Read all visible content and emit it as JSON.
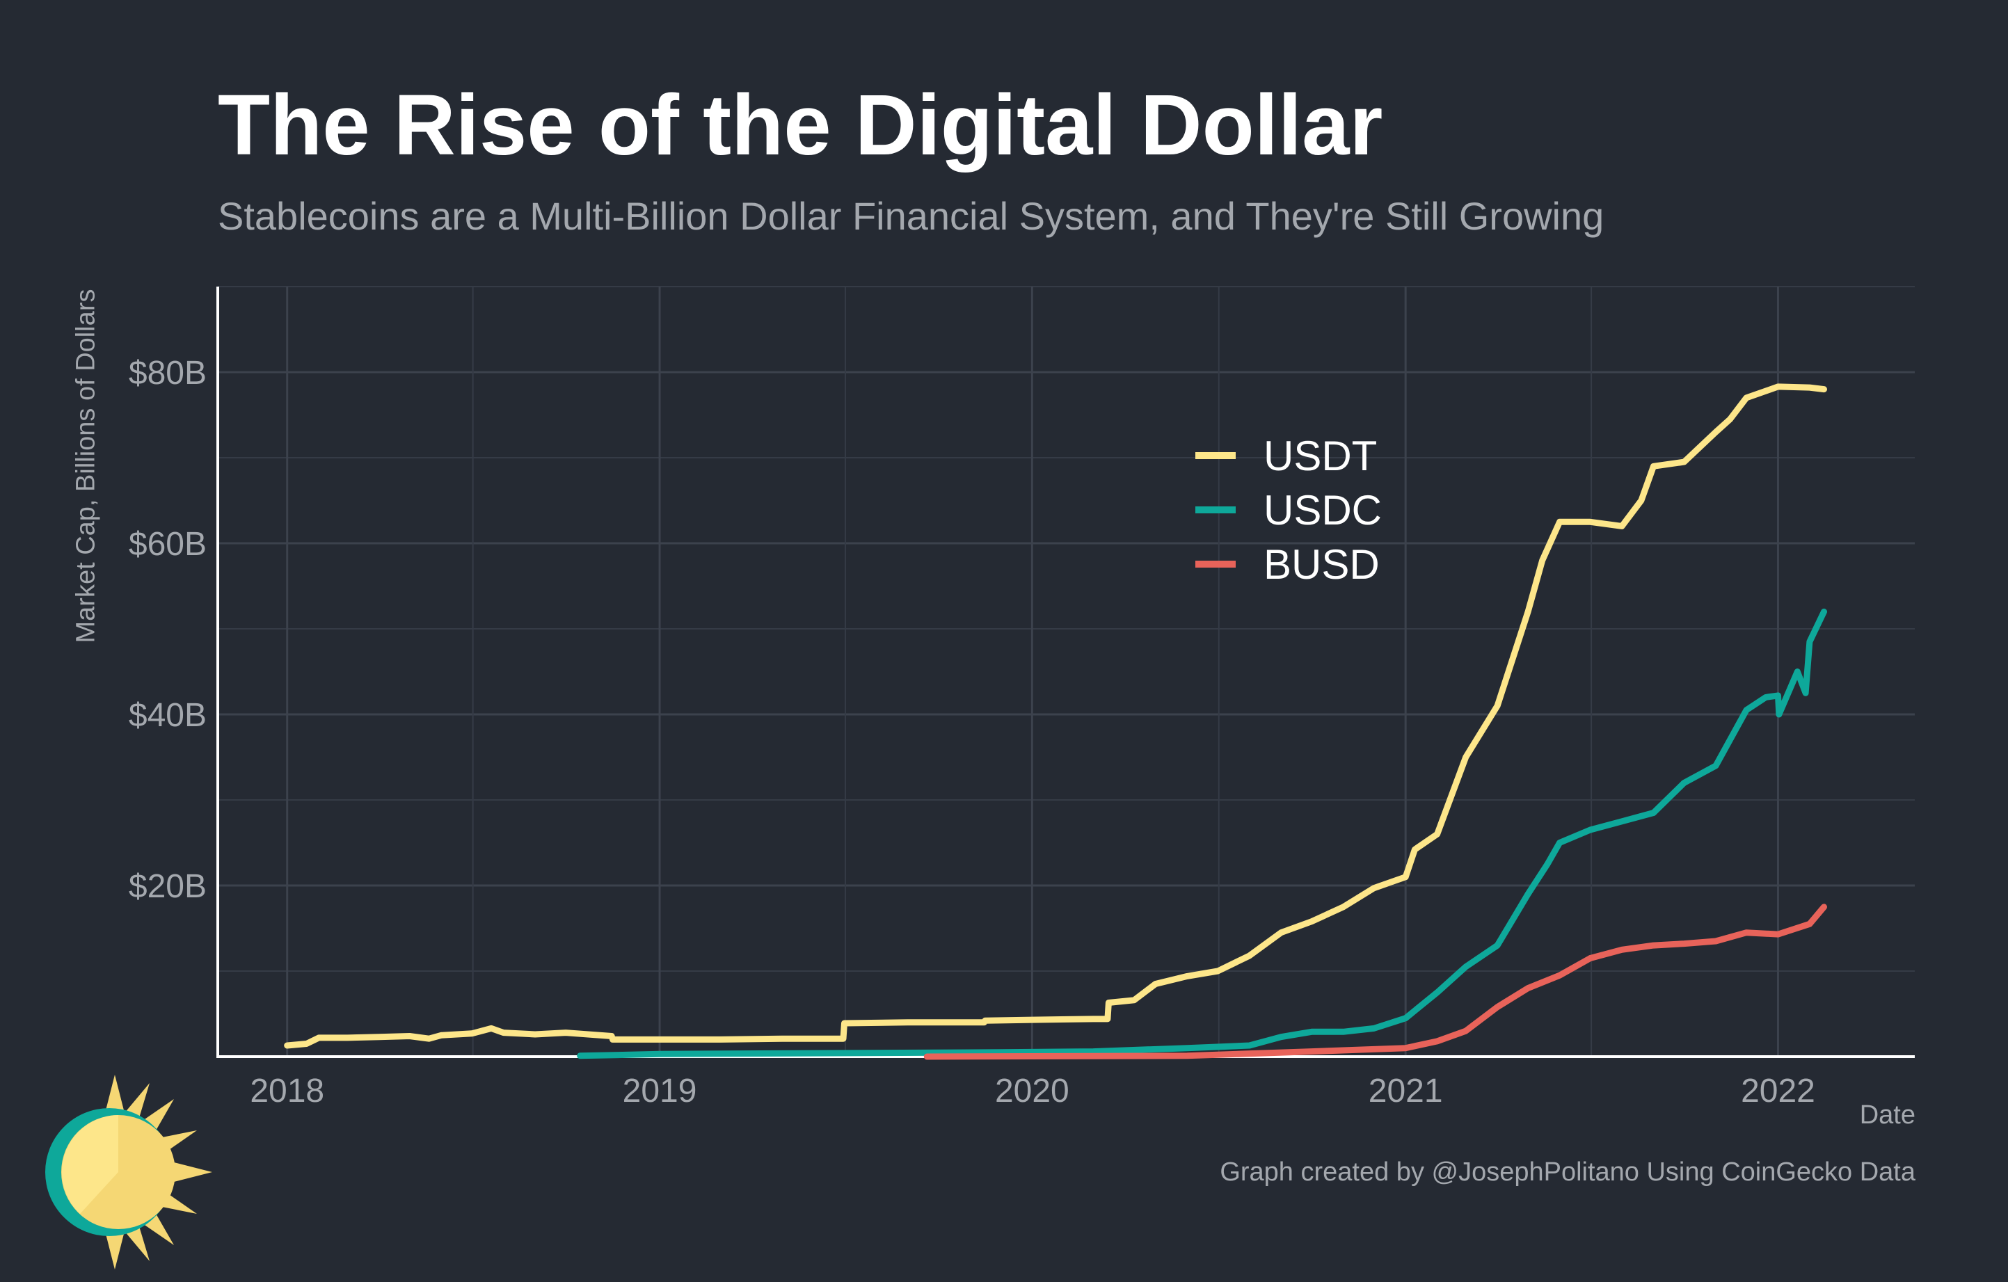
{
  "chart_data": {
    "type": "line",
    "title": "The Rise of the Digital Dollar",
    "subtitle": "Stablecoins are a Multi-Billion Dollar Financial System, and They're Still Growing",
    "xlabel": "Date",
    "ylabel": "Market Cap, Billions of Dollars",
    "caption": "Graph created by @JosephPolitano Using CoinGecko Data",
    "x_ticks": [
      "2018",
      "2019",
      "2020",
      "2021",
      "2022"
    ],
    "y_ticks": [
      "$20B",
      "$40B",
      "$60B",
      "$80B"
    ],
    "y_tick_values": [
      20,
      40,
      60,
      80
    ],
    "xlim": [
      "2017-10-25",
      "2022-05-15"
    ],
    "ylim": [
      0,
      90
    ],
    "grid": true,
    "legend_position": "upper-center",
    "series": [
      {
        "name": "USDT",
        "color": "#fde68a",
        "points": [
          [
            "2018-01-01",
            1.3
          ],
          [
            "2018-01-20",
            1.5
          ],
          [
            "2018-02-01",
            2.2
          ],
          [
            "2018-03-01",
            2.2
          ],
          [
            "2018-04-01",
            2.3
          ],
          [
            "2018-05-01",
            2.4
          ],
          [
            "2018-05-20",
            2.1
          ],
          [
            "2018-06-01",
            2.5
          ],
          [
            "2018-07-01",
            2.7
          ],
          [
            "2018-07-20",
            3.3
          ],
          [
            "2018-08-01",
            2.8
          ],
          [
            "2018-09-01",
            2.6
          ],
          [
            "2018-10-01",
            2.8
          ],
          [
            "2018-11-15",
            2.4
          ],
          [
            "2018-11-16",
            2.0
          ],
          [
            "2019-01-01",
            2.0
          ],
          [
            "2019-03-01",
            2.0
          ],
          [
            "2019-05-01",
            2.1
          ],
          [
            "2019-06-30",
            2.1
          ],
          [
            "2019-07-01",
            3.9
          ],
          [
            "2019-09-01",
            4.0
          ],
          [
            "2019-11-15",
            4.0
          ],
          [
            "2019-11-16",
            4.2
          ],
          [
            "2020-01-01",
            4.3
          ],
          [
            "2020-03-01",
            4.4
          ],
          [
            "2020-03-15",
            4.4
          ],
          [
            "2020-03-16",
            6.3
          ],
          [
            "2020-04-10",
            6.6
          ],
          [
            "2020-05-01",
            8.5
          ],
          [
            "2020-06-01",
            9.4
          ],
          [
            "2020-07-01",
            10.0
          ],
          [
            "2020-08-01",
            11.8
          ],
          [
            "2020-09-01",
            14.5
          ],
          [
            "2020-10-01",
            15.8
          ],
          [
            "2020-11-01",
            17.5
          ],
          [
            "2020-12-01",
            19.7
          ],
          [
            "2021-01-01",
            21.0
          ],
          [
            "2021-01-10",
            24.2
          ],
          [
            "2021-02-01",
            26.0
          ],
          [
            "2021-03-01",
            35.0
          ],
          [
            "2021-04-01",
            41.0
          ],
          [
            "2021-05-01",
            52.0
          ],
          [
            "2021-05-15",
            58.0
          ],
          [
            "2021-06-01",
            62.5
          ],
          [
            "2021-07-01",
            62.5
          ],
          [
            "2021-08-01",
            62.0
          ],
          [
            "2021-08-20",
            65.0
          ],
          [
            "2021-09-01",
            69.0
          ],
          [
            "2021-10-01",
            69.5
          ],
          [
            "2021-11-01",
            73.0
          ],
          [
            "2021-11-15",
            74.5
          ],
          [
            "2021-12-01",
            77.0
          ],
          [
            "2022-01-01",
            78.3
          ],
          [
            "2022-02-01",
            78.2
          ],
          [
            "2022-02-15",
            78.0
          ]
        ]
      },
      {
        "name": "USDC",
        "color": "#0ea89a",
        "points": [
          [
            "2018-10-15",
            0.1
          ],
          [
            "2019-01-01",
            0.3
          ],
          [
            "2019-06-01",
            0.4
          ],
          [
            "2019-12-01",
            0.5
          ],
          [
            "2020-03-01",
            0.6
          ],
          [
            "2020-06-01",
            1.0
          ],
          [
            "2020-08-01",
            1.3
          ],
          [
            "2020-09-01",
            2.3
          ],
          [
            "2020-10-01",
            2.9
          ],
          [
            "2020-11-01",
            2.9
          ],
          [
            "2020-12-01",
            3.3
          ],
          [
            "2021-01-01",
            4.5
          ],
          [
            "2021-02-01",
            7.5
          ],
          [
            "2021-03-01",
            10.5
          ],
          [
            "2021-04-01",
            13.0
          ],
          [
            "2021-05-01",
            19.0
          ],
          [
            "2021-05-20",
            22.5
          ],
          [
            "2021-06-01",
            25.0
          ],
          [
            "2021-07-01",
            26.5
          ],
          [
            "2021-08-01",
            27.5
          ],
          [
            "2021-09-01",
            28.5
          ],
          [
            "2021-10-01",
            32.0
          ],
          [
            "2021-11-01",
            34.0
          ],
          [
            "2021-12-01",
            40.5
          ],
          [
            "2021-12-20",
            42.0
          ],
          [
            "2022-01-01",
            42.2
          ],
          [
            "2022-01-02",
            40.0
          ],
          [
            "2022-01-20",
            45.0
          ],
          [
            "2022-01-28",
            42.5
          ],
          [
            "2022-02-01",
            48.5
          ],
          [
            "2022-02-15",
            52.0
          ]
        ]
      },
      {
        "name": "BUSD",
        "color": "#e8635a",
        "points": [
          [
            "2019-09-20",
            0.0
          ],
          [
            "2020-06-01",
            0.1
          ],
          [
            "2020-10-01",
            0.6
          ],
          [
            "2021-01-01",
            1.0
          ],
          [
            "2021-02-01",
            1.8
          ],
          [
            "2021-03-01",
            3.0
          ],
          [
            "2021-04-01",
            5.8
          ],
          [
            "2021-05-01",
            8.0
          ],
          [
            "2021-06-01",
            9.5
          ],
          [
            "2021-07-01",
            11.5
          ],
          [
            "2021-08-01",
            12.5
          ],
          [
            "2021-09-01",
            13.0
          ],
          [
            "2021-10-01",
            13.2
          ],
          [
            "2021-11-01",
            13.5
          ],
          [
            "2021-12-01",
            14.5
          ],
          [
            "2022-01-01",
            14.3
          ],
          [
            "2022-02-01",
            15.5
          ],
          [
            "2022-02-15",
            17.5
          ]
        ]
      }
    ]
  }
}
